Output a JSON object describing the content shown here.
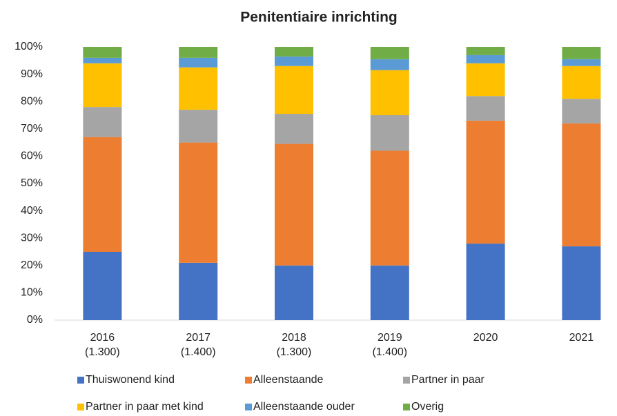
{
  "chart_data": {
    "type": "stacked_bar",
    "title": "Penitentiaire inrichting",
    "categories": [
      [
        "2016",
        "(1.300)"
      ],
      [
        "2017",
        "(1.400)"
      ],
      [
        "2018",
        "(1.300)"
      ],
      [
        "2019",
        "(1.400)"
      ],
      [
        "2020"
      ],
      [
        "2021"
      ]
    ],
    "series": [
      {
        "name": "Thuiswonend kind",
        "color": "#4472c4",
        "values": [
          25,
          21,
          20,
          20,
          28,
          27
        ]
      },
      {
        "name": "Alleenstaande",
        "color": "#ed7d31",
        "values": [
          42,
          44,
          44.5,
          42,
          45,
          45
        ]
      },
      {
        "name": "Partner in paar",
        "color": "#a5a5a5",
        "values": [
          11,
          12,
          11,
          13,
          9,
          9
        ]
      },
      {
        "name": "Partner in paar met kind",
        "color": "#ffc000",
        "values": [
          16,
          15.5,
          17.5,
          16.5,
          12,
          12
        ]
      },
      {
        "name": "Alleenstaande ouder",
        "color": "#5b9bd5",
        "values": [
          2,
          3.5,
          3.5,
          4,
          3,
          2.5
        ]
      },
      {
        "name": "Overig",
        "color": "#70ad47",
        "values": [
          4,
          4,
          3.5,
          4.5,
          3,
          4.5
        ]
      }
    ],
    "ylim": [
      0,
      100
    ],
    "yticks": [
      {
        "value": 0,
        "label": "0%"
      },
      {
        "value": 10,
        "label": "10%"
      },
      {
        "value": 20,
        "label": "20%"
      },
      {
        "value": 30,
        "label": "30%"
      },
      {
        "value": 40,
        "label": "40%"
      },
      {
        "value": 50,
        "label": "50%"
      },
      {
        "value": 60,
        "label": "60%"
      },
      {
        "value": 70,
        "label": "70%"
      },
      {
        "value": 80,
        "label": "80%"
      },
      {
        "value": 90,
        "label": "90%"
      },
      {
        "value": 100,
        "label": "100%"
      }
    ],
    "legend": "bottom"
  }
}
